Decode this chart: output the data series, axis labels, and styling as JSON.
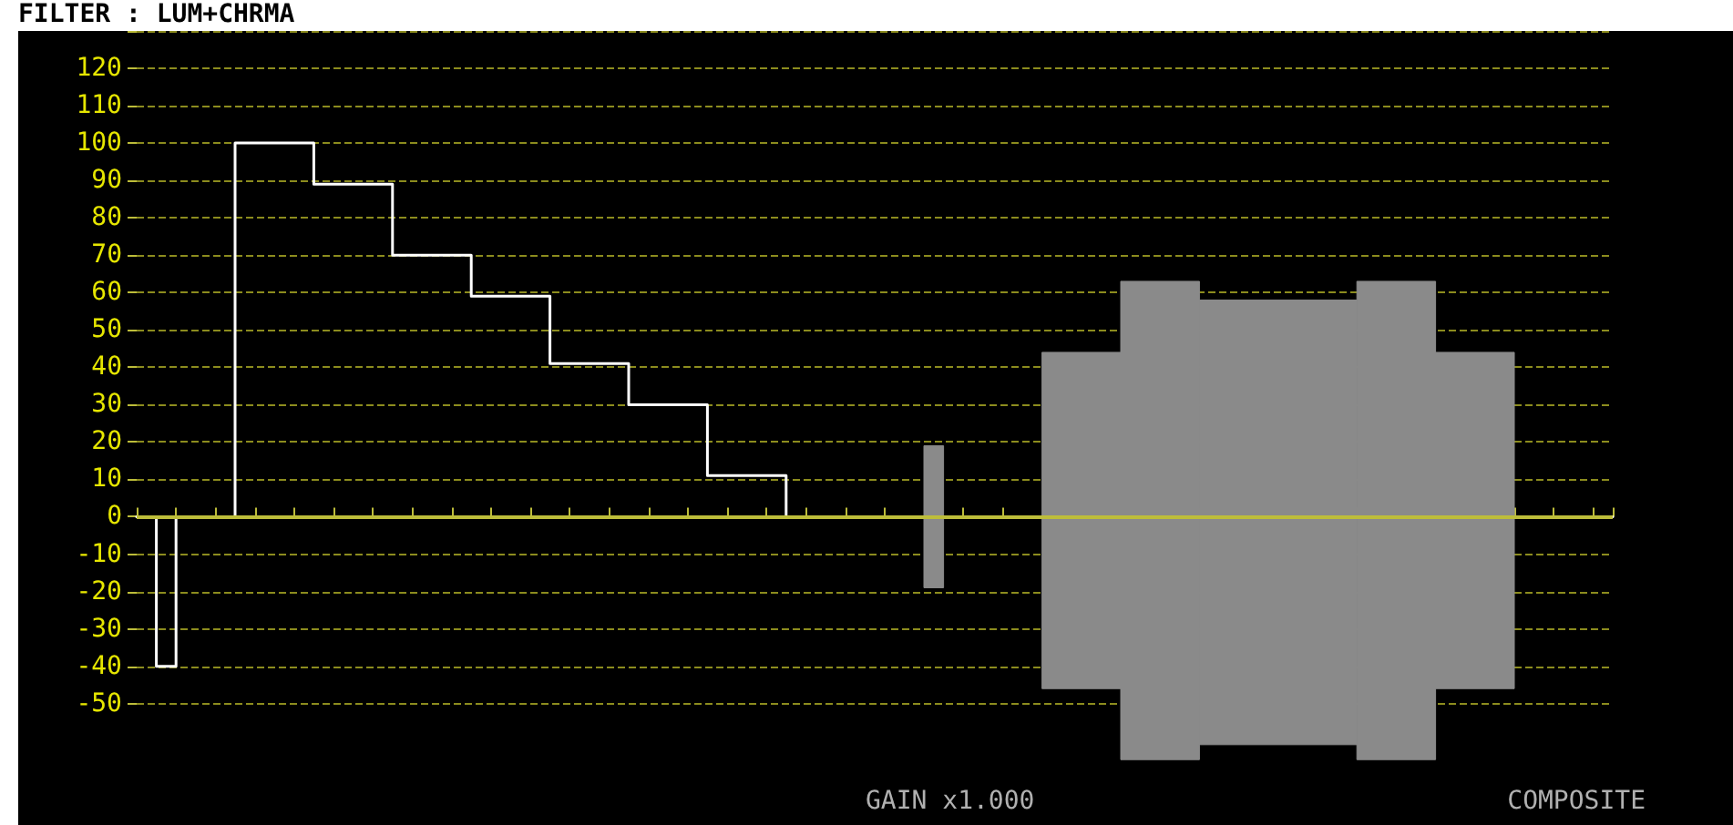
{
  "chart_data": {
    "type": "step",
    "title": "FILTER : LUM+CHRMA",
    "annotations": [
      "GAIN x1.000",
      "COMPOSITE"
    ],
    "categories": [
      null,
      null,
      null,
      null,
      null,
      null,
      null,
      null,
      null,
      null,
      null,
      null,
      null,
      null,
      null,
      null,
      null,
      null,
      null,
      null,
      null,
      null,
      null,
      null,
      null,
      null,
      null,
      null,
      null,
      null,
      null,
      null,
      null,
      null,
      null,
      null,
      null,
      null,
      null,
      null,
      null,
      null,
      null,
      null,
      null,
      null,
      null,
      null,
      null,
      null,
      null,
      null,
      null,
      null,
      null,
      null,
      null,
      null,
      null,
      null,
      null,
      null,
      null,
      null,
      null,
      null,
      null,
      null,
      null,
      null,
      null,
      null,
      null,
      null,
      null,
      null
    ],
    "series": [
      {
        "color": "#ffffff",
        "values": [
          0,
          -40,
          0,
          0,
          0,
          100,
          100,
          100,
          100,
          89,
          89,
          89,
          89,
          70,
          70,
          70,
          70,
          59,
          59,
          59,
          59,
          41,
          41,
          41,
          41,
          30,
          30,
          30,
          30,
          11,
          11,
          11,
          11,
          0,
          0,
          0,
          0,
          0,
          0,
          0,
          0,
          0,
          0,
          0,
          0,
          0,
          0,
          0,
          0,
          0,
          0,
          0,
          0,
          0,
          0,
          0,
          0,
          0,
          0,
          0,
          0,
          0,
          0,
          0,
          0,
          0,
          0,
          0,
          0,
          0,
          0,
          0,
          0,
          0,
          0,
          0
        ],
        "lower": [
          null,
          null,
          null,
          null,
          null,
          null,
          null,
          null,
          null,
          null,
          null,
          null,
          null,
          null,
          null,
          null,
          null,
          null,
          null,
          null,
          null,
          null,
          null,
          null,
          null,
          null,
          null,
          null,
          null,
          null,
          null,
          null,
          null,
          null,
          null,
          null,
          null,
          null,
          null,
          null,
          -19,
          -19,
          null,
          null,
          null,
          null,
          -46,
          -46,
          -46,
          -46,
          -65,
          -65,
          -65,
          -65,
          -61,
          -61,
          -61,
          -61,
          -61,
          -61,
          -61,
          -61,
          -65,
          -65,
          -65,
          -65,
          -46,
          -46,
          -46,
          -46,
          -46,
          null,
          null,
          null,
          null,
          null
        ],
        "upper": [
          null,
          null,
          null,
          null,
          null,
          null,
          null,
          null,
          null,
          null,
          null,
          null,
          null,
          null,
          null,
          null,
          null,
          null,
          null,
          null,
          null,
          null,
          null,
          null,
          null,
          null,
          null,
          null,
          null,
          null,
          null,
          null,
          null,
          null,
          null,
          null,
          null,
          null,
          null,
          null,
          19,
          19,
          null,
          null,
          null,
          null,
          44,
          44,
          44,
          44,
          63,
          63,
          63,
          63,
          58,
          58,
          58,
          58,
          58,
          58,
          58,
          58,
          63,
          63,
          63,
          63,
          44,
          44,
          44,
          44,
          44,
          null,
          null,
          null,
          null,
          null
        ]
      }
    ],
    "ylim": [
      -82,
      130
    ],
    "ref_lines": [
      {
        "axis": "y",
        "value": 0,
        "color": "#bdbd3a"
      }
    ],
    "yticks": [
      -50,
      -40,
      -30,
      -20,
      -10,
      0,
      10,
      20,
      30,
      40,
      50,
      60,
      70,
      80,
      90,
      100,
      110,
      120,
      {
        "value": 130,
        "label": null
      }
    ],
    "grid": "y",
    "tick_labels": "y",
    "marker": "none",
    "line_style": "solid"
  }
}
